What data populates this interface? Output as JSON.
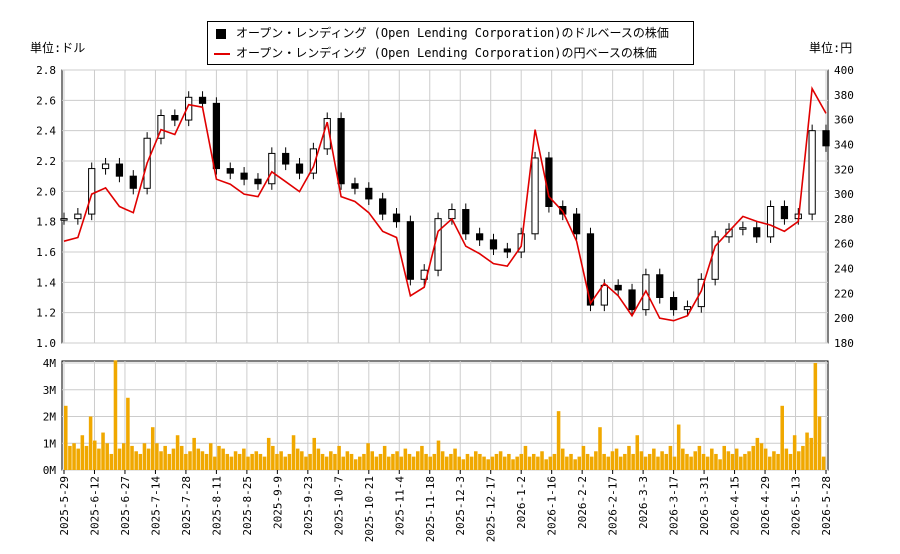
{
  "legend": {
    "series1": "オープン・レンディング (Open Lending Corporation)のドルベースの株価",
    "series2": "オープン・レンディング (Open Lending Corporation)の円ベースの株価"
  },
  "units": {
    "left": "単位:ドル",
    "right": "単位:円"
  },
  "colors": {
    "usd_candle": "#000000",
    "jpy_line": "#e00000",
    "volume": "#f0a800",
    "grid": "#cccccc"
  },
  "chart_data": [
    {
      "type": "line",
      "role": "price",
      "x_labels": [
        "2025-5-29",
        "2025-6-12",
        "2025-6-27",
        "2025-7-14",
        "2025-7-28",
        "2025-8-11",
        "2025-8-25",
        "2025-9-9",
        "2025-9-23",
        "2025-10-7",
        "2025-10-21",
        "2025-11-4",
        "2025-11-18",
        "2025-12-3",
        "2025-12-17",
        "2026-1-2",
        "2026-1-16",
        "2026-2-2",
        "2026-2-17",
        "2026-3-3",
        "2026-3-17",
        "2026-3-31",
        "2026-4-15",
        "2026-4-29",
        "2026-5-13",
        "2026-5-28"
      ],
      "y_left": {
        "ticks": [
          "1.0",
          "1.2",
          "1.4",
          "1.6",
          "1.8",
          "2.0",
          "2.2",
          "2.4",
          "2.6",
          "2.8"
        ],
        "ylim": [
          1.0,
          2.8
        ]
      },
      "y_right": {
        "ticks": [
          "180",
          "200",
          "220",
          "240",
          "260",
          "280",
          "300",
          "320",
          "340",
          "360",
          "380",
          "400"
        ],
        "ylim": [
          180,
          400
        ]
      },
      "grid": true,
      "series": [
        {
          "name": "オープン・レンディング (Open Lending Corporation)のドルベースの株価",
          "axis": "left",
          "values": [
            1.82,
            1.85,
            2.15,
            2.18,
            2.1,
            2.02,
            2.35,
            2.5,
            2.47,
            2.62,
            2.58,
            2.15,
            2.12,
            2.08,
            2.05,
            2.25,
            2.18,
            2.12,
            2.28,
            2.48,
            2.05,
            2.02,
            1.95,
            1.85,
            1.8,
            1.42,
            1.48,
            1.82,
            1.88,
            1.72,
            1.68,
            1.62,
            1.6,
            1.72,
            2.22,
            1.9,
            1.85,
            1.72,
            1.25,
            1.38,
            1.35,
            1.22,
            1.45,
            1.3,
            1.22,
            1.24,
            1.42,
            1.7,
            1.75,
            1.76,
            1.7,
            1.9,
            1.82,
            1.85,
            2.4,
            2.3
          ]
        },
        {
          "name": "オープン・レンディング (Open Lending Corporation)の円ベースの株価",
          "axis": "right",
          "values": [
            262,
            265,
            300,
            305,
            290,
            285,
            325,
            352,
            348,
            372,
            370,
            312,
            308,
            300,
            298,
            318,
            310,
            302,
            322,
            358,
            298,
            294,
            285,
            270,
            265,
            218,
            225,
            270,
            280,
            258,
            252,
            244,
            242,
            258,
            352,
            298,
            286,
            262,
            212,
            228,
            218,
            202,
            222,
            200,
            198,
            202,
            222,
            258,
            270,
            282,
            278,
            275,
            270,
            278,
            385,
            365
          ]
        }
      ]
    },
    {
      "type": "bar",
      "role": "volume",
      "y_ticks": [
        "0M",
        "1M",
        "2M",
        "3M",
        "4M"
      ],
      "ylim": [
        0,
        4
      ],
      "values": [
        2.4,
        0.9,
        1.0,
        0.8,
        1.3,
        0.9,
        2.0,
        1.1,
        0.8,
        1.4,
        1.0,
        0.6,
        4.1,
        0.8,
        1.0,
        2.7,
        0.9,
        0.7,
        0.6,
        1.0,
        0.8,
        1.6,
        1.0,
        0.7,
        0.9,
        0.6,
        0.8,
        1.3,
        0.9,
        0.6,
        0.7,
        1.2,
        0.8,
        0.7,
        0.6,
        1.0,
        0.5,
        0.9,
        0.8,
        0.6,
        0.5,
        0.7,
        0.6,
        0.8,
        0.5,
        0.6,
        0.7,
        0.6,
        0.5,
        1.2,
        0.9,
        0.6,
        0.7,
        0.5,
        0.6,
        1.3,
        0.8,
        0.7,
        0.5,
        0.6,
        1.2,
        0.8,
        0.6,
        0.5,
        0.7,
        0.6,
        0.9,
        0.5,
        0.7,
        0.6,
        0.4,
        0.5,
        0.6,
        1.0,
        0.7,
        0.5,
        0.6,
        0.9,
        0.5,
        0.6,
        0.7,
        0.5,
        0.8,
        0.6,
        0.5,
        0.7,
        0.9,
        0.6,
        0.5,
        0.6,
        1.1,
        0.7,
        0.5,
        0.6,
        0.8,
        0.5,
        0.4,
        0.6,
        0.5,
        0.7,
        0.6,
        0.5,
        0.4,
        0.5,
        0.6,
        0.7,
        0.5,
        0.6,
        0.4,
        0.5,
        0.6,
        0.9,
        0.5,
        0.6,
        0.5,
        0.7,
        0.4,
        0.5,
        0.6,
        2.2,
        0.8,
        0.5,
        0.6,
        0.4,
        0.5,
        0.9,
        0.6,
        0.5,
        0.7,
        1.6,
        0.6,
        0.5,
        0.7,
        0.8,
        0.5,
        0.6,
        0.9,
        0.6,
        1.3,
        0.7,
        0.5,
        0.6,
        0.8,
        0.5,
        0.7,
        0.6,
        0.9,
        0.5,
        1.7,
        0.8,
        0.6,
        0.5,
        0.7,
        0.9,
        0.6,
        0.5,
        0.8,
        0.6,
        0.4,
        0.9,
        0.7,
        0.6,
        0.8,
        0.5,
        0.6,
        0.7,
        0.9,
        1.2,
        1.0,
        0.8,
        0.5,
        0.7,
        0.6,
        2.4,
        0.8,
        0.6,
        1.3,
        0.7,
        0.9,
        1.4,
        1.2,
        4.0,
        2.0,
        0.5
      ]
    }
  ]
}
